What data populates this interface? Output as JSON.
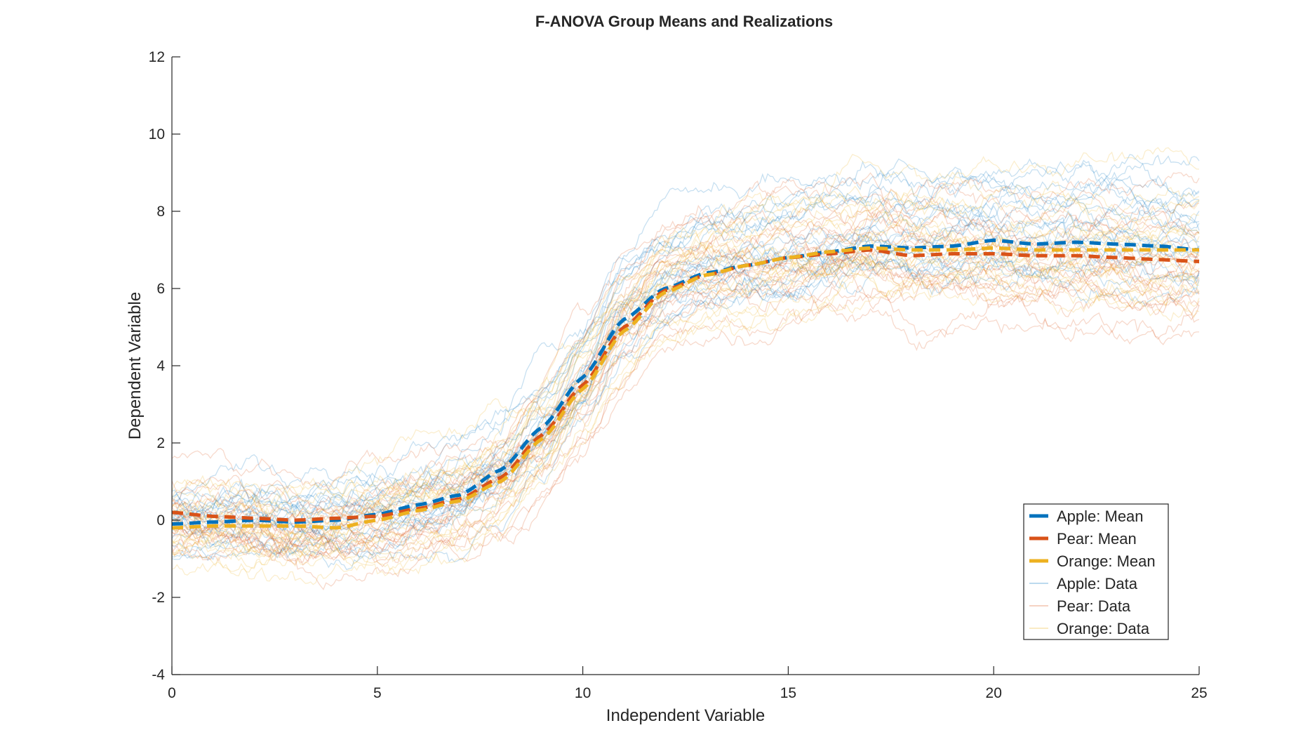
{
  "chart_data": {
    "type": "line",
    "title": "F-ANOVA Group Means and Realizations",
    "xlabel": "Independent Variable",
    "ylabel": "Dependent Variable",
    "xlim": [
      0,
      25
    ],
    "ylim": [
      -4,
      12
    ],
    "xticks": [
      0,
      5,
      10,
      15,
      20,
      25
    ],
    "yticks": [
      -4,
      -2,
      0,
      2,
      4,
      6,
      8,
      10,
      12
    ],
    "grid": false,
    "legend_position": "bottom-right",
    "x": [
      0,
      1,
      2,
      3,
      4,
      5,
      6,
      7,
      8,
      9,
      10,
      11,
      12,
      13,
      14,
      15,
      16,
      17,
      18,
      19,
      20,
      21,
      22,
      23,
      24,
      25
    ],
    "series": [
      {
        "name": "Apple: Mean",
        "style": "dashed-thick",
        "color": "#0072BD",
        "values": [
          -0.1,
          -0.05,
          0.0,
          -0.05,
          0.0,
          0.15,
          0.4,
          0.65,
          1.3,
          2.4,
          3.7,
          5.2,
          6.0,
          6.4,
          6.6,
          6.8,
          6.95,
          7.1,
          7.05,
          7.1,
          7.25,
          7.15,
          7.2,
          7.15,
          7.1,
          7.0
        ]
      },
      {
        "name": "Pear: Mean",
        "style": "dashed-thick",
        "color": "#D95319",
        "values": [
          0.2,
          0.1,
          0.05,
          0.0,
          0.05,
          0.1,
          0.3,
          0.55,
          1.1,
          2.2,
          3.5,
          5.0,
          5.95,
          6.35,
          6.6,
          6.8,
          6.9,
          7.0,
          6.85,
          6.9,
          6.9,
          6.85,
          6.85,
          6.8,
          6.75,
          6.7
        ]
      },
      {
        "name": "Orange: Mean",
        "style": "dashed-thick",
        "color": "#EDB120",
        "values": [
          -0.2,
          -0.15,
          -0.15,
          -0.15,
          -0.2,
          0.0,
          0.25,
          0.5,
          1.0,
          2.1,
          3.4,
          4.9,
          5.9,
          6.35,
          6.6,
          6.8,
          6.95,
          7.05,
          7.0,
          7.0,
          7.05,
          7.0,
          7.0,
          7.0,
          7.0,
          7.0
        ]
      },
      {
        "name": "Apple: Data",
        "style": "thin-faint",
        "color": "#0072BD",
        "realizations": 20,
        "spread": [
          1.0,
          1.6
        ]
      },
      {
        "name": "Pear: Data",
        "style": "thin-faint",
        "color": "#D95319",
        "realizations": 20,
        "spread": [
          1.0,
          1.4
        ]
      },
      {
        "name": "Orange: Data",
        "style": "thin-faint",
        "color": "#EDB120",
        "realizations": 20,
        "spread": [
          1.2,
          1.2
        ]
      }
    ]
  }
}
